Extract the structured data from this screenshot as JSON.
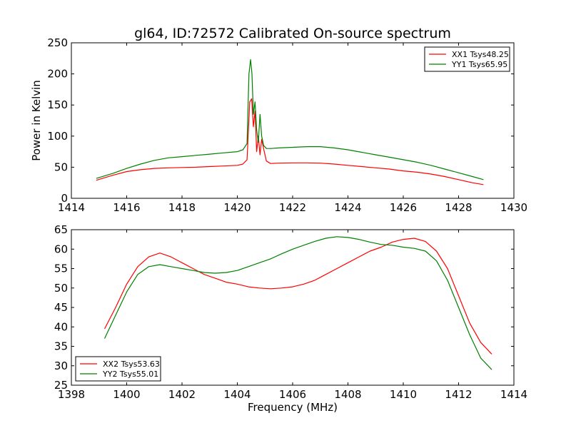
{
  "title": "gl64, ID:72572 Calibrated On-source spectrum",
  "chart_data": [
    {
      "type": "line",
      "ylabel": "Power in Kelvin",
      "xlabel": "",
      "xlim": [
        1414,
        1430
      ],
      "ylim": [
        0,
        250
      ],
      "xticks": [
        1414,
        1416,
        1418,
        1420,
        1422,
        1424,
        1426,
        1428,
        1430
      ],
      "yticks": [
        0,
        50,
        100,
        150,
        200,
        250
      ],
      "legend_position": "top-right",
      "series": [
        {
          "name": "XX1 Tsys48.25",
          "color": "#ff0000",
          "x": [
            1414.9,
            1415.5,
            1416.0,
            1416.5,
            1417.0,
            1417.5,
            1418.0,
            1418.5,
            1419.0,
            1419.5,
            1420.0,
            1420.2,
            1420.35,
            1420.45,
            1420.52,
            1420.58,
            1420.64,
            1420.7,
            1420.76,
            1420.82,
            1420.88,
            1420.95,
            1421.05,
            1421.2,
            1421.5,
            1422.0,
            1422.5,
            1423.0,
            1423.5,
            1424.0,
            1424.5,
            1425.0,
            1425.5,
            1426.0,
            1426.5,
            1427.0,
            1427.5,
            1428.0,
            1428.5,
            1428.9
          ],
          "y": [
            29,
            37,
            43,
            46,
            48,
            49,
            49.5,
            50,
            51,
            52,
            53,
            55,
            62,
            155,
            160,
            115,
            140,
            75,
            100,
            70,
            95,
            80,
            60,
            56,
            56.5,
            57,
            57,
            56.5,
            55,
            53,
            51,
            49,
            47,
            44,
            42,
            39,
            35,
            30,
            25,
            22
          ]
        },
        {
          "name": "YY1 Tsys65.95",
          "color": "#008000",
          "x": [
            1414.9,
            1415.5,
            1416.0,
            1416.5,
            1417.0,
            1417.5,
            1418.0,
            1418.5,
            1419.0,
            1419.5,
            1420.0,
            1420.2,
            1420.35,
            1420.42,
            1420.48,
            1420.53,
            1420.58,
            1420.64,
            1420.7,
            1420.76,
            1420.82,
            1420.88,
            1420.95,
            1421.05,
            1421.2,
            1421.5,
            1422.0,
            1422.5,
            1423.0,
            1423.5,
            1424.0,
            1424.5,
            1425.0,
            1425.5,
            1426.0,
            1426.5,
            1427.0,
            1427.5,
            1428.0,
            1428.5,
            1428.9
          ],
          "y": [
            32,
            40,
            48,
            55,
            61,
            65,
            67,
            69,
            71,
            73,
            75,
            78,
            88,
            200,
            223,
            200,
            135,
            155,
            110,
            90,
            135,
            100,
            85,
            80,
            80,
            81,
            82,
            83,
            83,
            81,
            78,
            74,
            70,
            66,
            62,
            58,
            53,
            47,
            41,
            35,
            30
          ]
        }
      ]
    },
    {
      "type": "line",
      "ylabel": "",
      "xlabel": "Frequency (MHz)",
      "xlim": [
        1398,
        1414
      ],
      "ylim": [
        25,
        65
      ],
      "xticks": [
        1398,
        1400,
        1402,
        1404,
        1406,
        1408,
        1410,
        1412,
        1414
      ],
      "yticks": [
        25,
        30,
        35,
        40,
        45,
        50,
        55,
        60,
        65
      ],
      "legend_position": "bottom-left",
      "series": [
        {
          "name": "XX2 Tsys53.63",
          "color": "#ff0000",
          "x": [
            1399.2,
            1399.6,
            1400.0,
            1400.4,
            1400.8,
            1401.2,
            1401.6,
            1402.0,
            1402.4,
            1402.8,
            1403.2,
            1403.6,
            1404.0,
            1404.4,
            1404.8,
            1405.2,
            1405.6,
            1406.0,
            1406.4,
            1406.8,
            1407.2,
            1407.6,
            1408.0,
            1408.4,
            1408.8,
            1409.2,
            1409.6,
            1410.0,
            1410.4,
            1410.8,
            1411.2,
            1411.6,
            1412.0,
            1412.4,
            1412.8,
            1413.2
          ],
          "y": [
            39.5,
            45,
            51,
            55.5,
            58,
            59,
            58,
            56.5,
            55,
            53.5,
            52.5,
            51.5,
            51,
            50.3,
            50,
            49.8,
            50,
            50.3,
            51,
            52,
            53.5,
            55,
            56.5,
            58,
            59.5,
            60.5,
            61.8,
            62.5,
            62.8,
            62,
            59.5,
            55,
            48,
            41,
            36,
            33
          ]
        },
        {
          "name": "YY2 Tsys55.01",
          "color": "#008000",
          "x": [
            1399.2,
            1399.6,
            1400.0,
            1400.4,
            1400.8,
            1401.2,
            1401.6,
            1402.0,
            1402.4,
            1402.8,
            1403.2,
            1403.6,
            1404.0,
            1404.4,
            1404.8,
            1405.2,
            1405.6,
            1406.0,
            1406.4,
            1406.8,
            1407.2,
            1407.6,
            1408.0,
            1408.4,
            1408.8,
            1409.2,
            1409.6,
            1410.0,
            1410.4,
            1410.8,
            1411.2,
            1411.6,
            1412.0,
            1412.4,
            1412.8,
            1413.2
          ],
          "y": [
            37,
            43,
            49,
            53.5,
            55.5,
            56,
            55.5,
            55,
            54.5,
            54,
            53.8,
            54,
            54.5,
            55.5,
            56.5,
            57.5,
            58.8,
            60,
            61,
            62,
            62.8,
            63.2,
            63,
            62.5,
            61.8,
            61.2,
            61,
            60.5,
            60.2,
            59.5,
            57,
            52,
            45,
            38,
            32,
            29
          ]
        }
      ]
    }
  ]
}
